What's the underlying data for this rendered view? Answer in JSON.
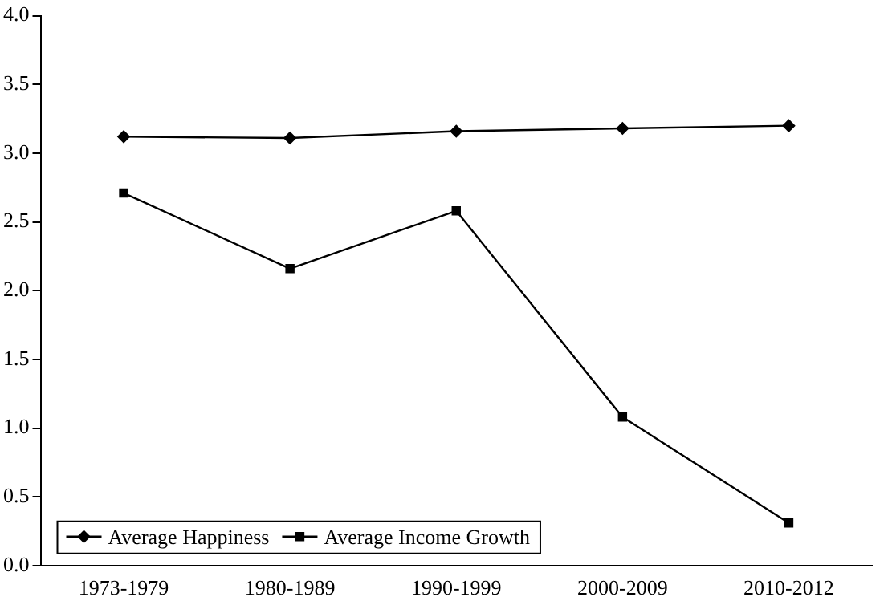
{
  "chart_data": {
    "type": "line",
    "categories": [
      "1973-1979",
      "1980-1989",
      "1990-1999",
      "2000-2009",
      "2010-2012"
    ],
    "series": [
      {
        "name": "Average Happiness",
        "color": "#000000",
        "marker": "diamond",
        "values": [
          3.12,
          3.11,
          3.16,
          3.18,
          3.2
        ]
      },
      {
        "name": "Average Income Growth",
        "color": "#000000",
        "marker": "square",
        "values": [
          2.71,
          2.16,
          2.58,
          1.08,
          0.31
        ]
      }
    ],
    "ylim": [
      0,
      4
    ],
    "yticks": [
      {
        "value": 0,
        "label": "0.0"
      },
      0.5,
      {
        "value": 1,
        "label": "1.0"
      },
      1.5,
      {
        "value": 2,
        "label": "2.0"
      },
      2.5,
      {
        "value": 3,
        "label": "3.0"
      },
      3.5,
      {
        "value": 4,
        "label": "4.0"
      }
    ],
    "grid": false,
    "legend": "bottom left"
  }
}
